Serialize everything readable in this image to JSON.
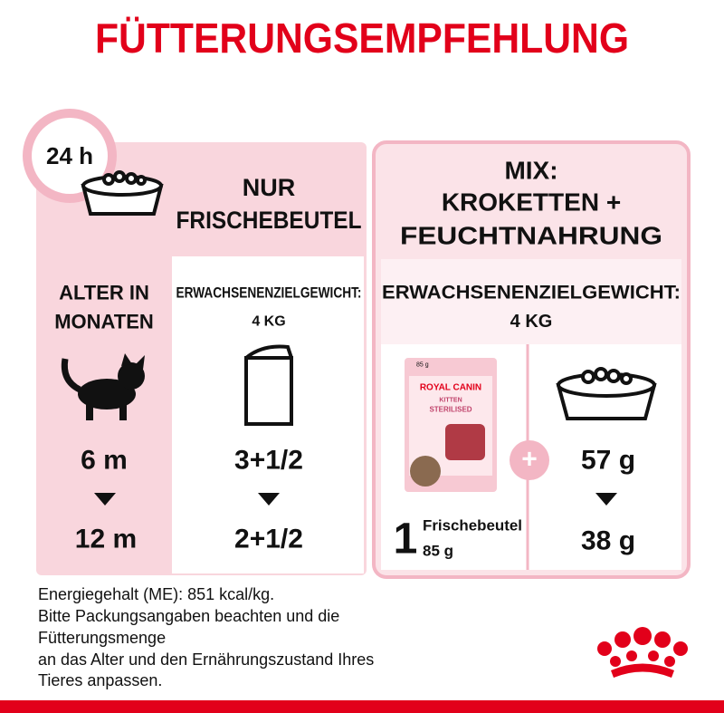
{
  "title": "FÜTTERUNGSEMPFEHLUNG",
  "clock": "24 h",
  "left_panel": {
    "heading": [
      "NUR",
      "FRISCHEBEUTEL"
    ],
    "age_label": [
      "ALTER IN",
      "MONATEN"
    ],
    "weight_label": "ERWACHSENENZIELGEWICHT:",
    "weight": "4 KG",
    "rows": [
      [
        "6 m",
        "3+1/2"
      ],
      [
        "12 m",
        "2+1/2"
      ]
    ]
  },
  "right_panel": {
    "heading": [
      "MIX:",
      "KROKETTEN +",
      "FEUCHTNAHRUNG"
    ],
    "weight_label": "ERWACHSENENZIELGEWICHT:",
    "weight": "4 KG",
    "pouch": {
      "weight": "85 g",
      "brand": "ROYAL CANIN",
      "variety": "KITTEN",
      "line": "STERILISED"
    },
    "plus": "+",
    "pouch_count": "1",
    "pouch_name": "Frischebeutel",
    "pouch_weight": "85 g",
    "rows": [
      "57 g",
      "38 g"
    ]
  },
  "footer": {
    "lines": [
      "Energiegehalt (ME): 851 kcal/kg.",
      "Bitte Packungsangaben beachten und die",
      "Fütterungsmenge",
      "an das Alter und den Ernährungszustand Ihres",
      "Tieres anpassen."
    ]
  }
}
